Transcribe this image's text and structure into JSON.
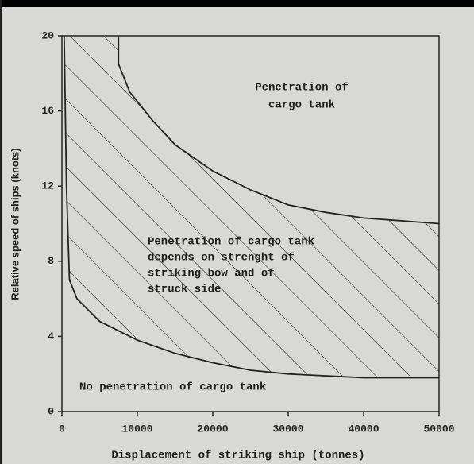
{
  "chart_data": {
    "type": "line",
    "x_label": "Displacement of striking ship (tonnes)",
    "y_label": "Relative speed of ships (knots)",
    "xlim": [
      0,
      50000
    ],
    "ylim": [
      0,
      20
    ],
    "xticks": [
      0,
      10000,
      20000,
      30000,
      40000,
      50000
    ],
    "yticks": [
      0,
      4,
      8,
      12,
      16,
      20
    ],
    "series": [
      {
        "color": "#222222",
        "x": [
          7500,
          7500,
          9000,
          12000,
          15000,
          20000,
          25000,
          30000,
          35000,
          40000,
          50000
        ],
        "values": [
          20,
          18.5,
          17,
          15.5,
          14.2,
          12.8,
          11.8,
          11,
          10.6,
          10.3,
          10
        ]
      },
      {
        "color": "#222222",
        "x": [
          300,
          600,
          1000,
          2000,
          5000,
          10000,
          15000,
          20000,
          25000,
          30000,
          40000,
          50000
        ],
        "values": [
          20,
          12,
          7,
          6,
          4.8,
          3.8,
          3.1,
          2.6,
          2.2,
          2,
          1.8,
          1.8
        ]
      }
    ],
    "annotations": [
      [
        "Penetration of",
        "cargo tank"
      ],
      [
        "Penetration of cargo tank",
        "depends on strenght of",
        "striking bow and of",
        "struck side"
      ],
      [
        "No penetration of cargo tank"
      ]
    ]
  }
}
